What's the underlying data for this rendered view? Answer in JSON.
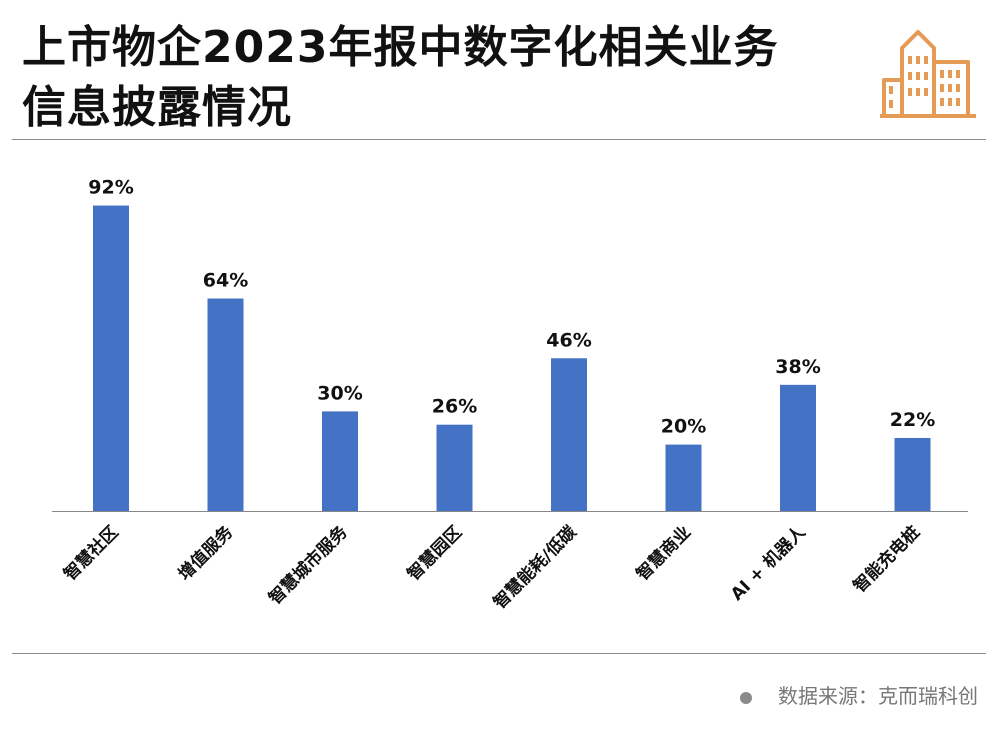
{
  "title_lines": [
    "上市物企2023年报中数字化相关业务",
    "信息披露情况"
  ],
  "source_text": "数据来源：克而瑞科创",
  "icon": "building-logo-icon",
  "colors": {
    "bar": "#4472C4",
    "accent": "#E59A55",
    "axis": "#888888"
  },
  "chart_data": {
    "type": "bar",
    "categories": [
      "智慧社区",
      "增值服务",
      "智慧城市服务",
      "智慧园区",
      "智慧能耗/低碳",
      "智慧商业",
      "AI + 机器人",
      "智能充电桩"
    ],
    "values": [
      92,
      64,
      30,
      26,
      46,
      20,
      38,
      22
    ],
    "value_labels": [
      "92%",
      "64%",
      "30%",
      "26%",
      "46%",
      "20%",
      "38%",
      "22%"
    ],
    "ylim": [
      0,
      100
    ],
    "grid": false,
    "legend": "none"
  }
}
